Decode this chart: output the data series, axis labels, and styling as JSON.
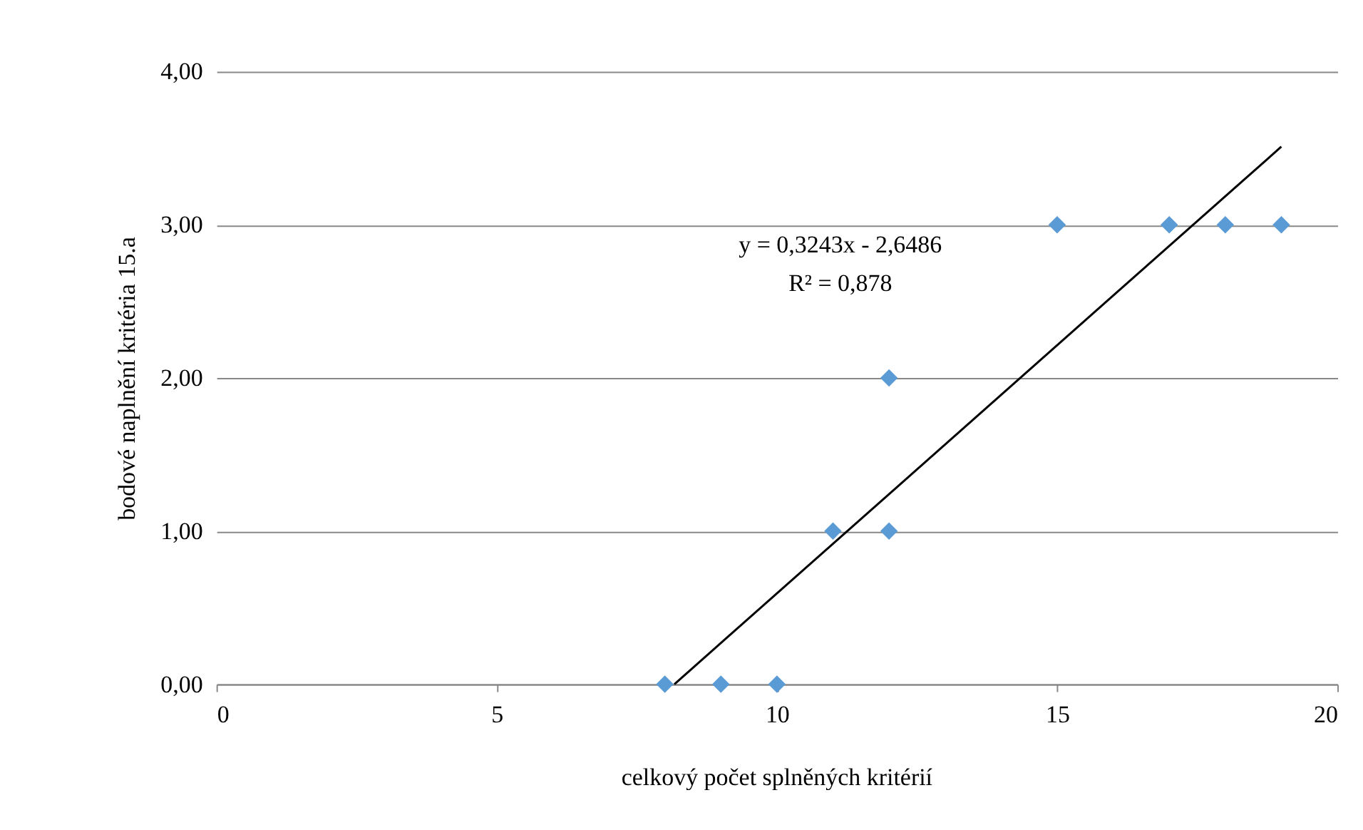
{
  "chart_data": {
    "type": "scatter",
    "xlabel": "celkový počet splněných kritérií",
    "ylabel": "bodové naplnění kritéria 15.a",
    "series": [
      {
        "color": "#5b9bd5",
        "marker": "diamond",
        "x": [
          8,
          9,
          10,
          11,
          12,
          12,
          15,
          17,
          18,
          19
        ],
        "values": [
          0,
          0,
          0,
          1,
          1,
          2,
          3,
          3,
          3,
          3
        ]
      },
      {
        "type": "line",
        "color": "#000000",
        "line_style": "solid",
        "x": [
          8.17,
          19
        ],
        "values": [
          0,
          3.51
        ]
      }
    ],
    "xlim": [
      0,
      20
    ],
    "xticks": [
      0,
      5,
      10,
      15,
      20
    ],
    "ylim": [
      0,
      4
    ],
    "yticks": [
      {
        "value": 0,
        "label": "0,00"
      },
      {
        "value": 1,
        "label": "1,00"
      },
      {
        "value": 2,
        "label": "2,00"
      },
      {
        "value": 3,
        "label": "3,00"
      },
      {
        "value": 4,
        "label": "4,00"
      }
    ],
    "grid": "y",
    "annotations": [
      "y = 0,3243x - 2,6486",
      "R² = 0,878"
    ]
  }
}
